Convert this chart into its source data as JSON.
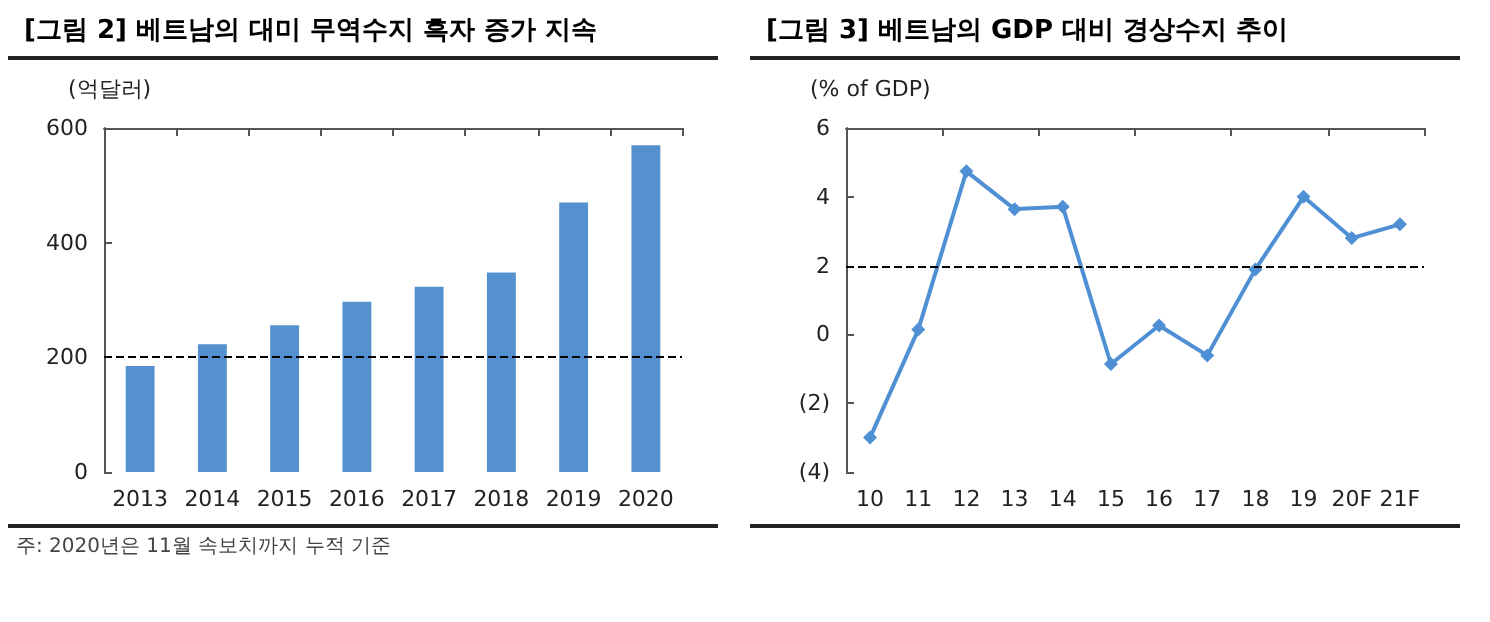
{
  "chart_data": [
    {
      "type": "bar",
      "title": "[그림 2] 베트남의 대미 무역수지 흑자 증가 지속",
      "ylabel": "(억달러)",
      "categories": [
        "2013",
        "2014",
        "2015",
        "2016",
        "2017",
        "2018",
        "2019",
        "2020"
      ],
      "series": [
        {
          "color": "#5591ce",
          "values": [
            185,
            223,
            256,
            297,
            323,
            348,
            470,
            570
          ]
        }
      ],
      "ylim": [
        0,
        600
      ],
      "yticks": [
        0,
        200,
        400,
        600
      ],
      "grid": false,
      "ref_lines": [
        {
          "axis": "y",
          "value": 200,
          "line_style": "dashed",
          "color": "#000000"
        }
      ],
      "annotations": [
        "주: 2020년은 11월 속보치까지 누적 기준"
      ]
    },
    {
      "type": "line",
      "title": "[그림 3] 베트남의 GDP 대비 경상수지 추이",
      "ylabel": "(% of GDP)",
      "categories": [
        "10",
        "11",
        "12",
        "13",
        "14",
        "15",
        "16",
        "17",
        "18",
        "19",
        "20F",
        "21F"
      ],
      "series": [
        {
          "color": "#4f8fd3",
          "values": [
            -3.0,
            0.14,
            4.74,
            3.64,
            3.71,
            -0.86,
            0.26,
            -0.61,
            1.89,
            4.0,
            2.8,
            3.2
          ]
        }
      ],
      "ylim": [
        -4,
        6
      ],
      "yticks": [
        {
          "value": -4,
          "label": "(4)"
        },
        {
          "value": -2,
          "label": "(2)"
        },
        0,
        2,
        4,
        6
      ],
      "grid": false,
      "marker": "diamond",
      "line_style": "solid",
      "ref_lines": [
        {
          "axis": "y",
          "value": 2,
          "line_style": "dashed",
          "color": "#000000"
        }
      ]
    }
  ]
}
